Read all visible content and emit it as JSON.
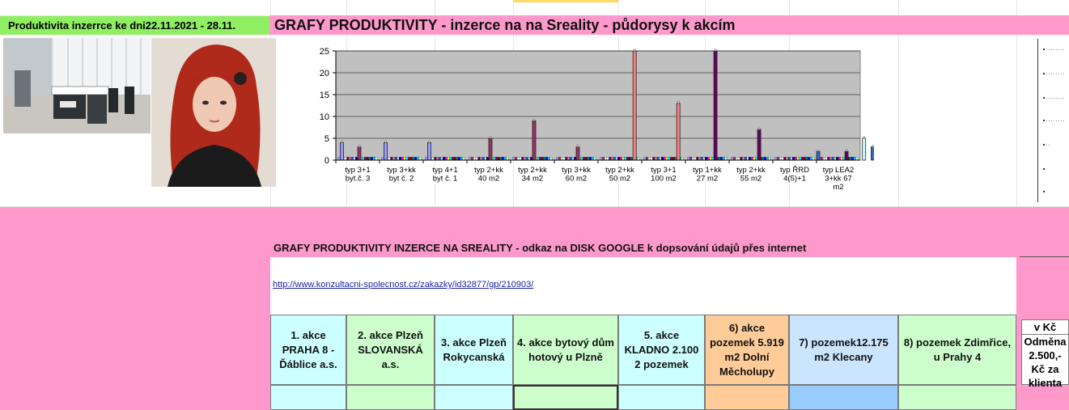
{
  "header": {
    "left_title": "Produktivita inzerrce ke dni22.11.2021 - 28.11.",
    "main_title": "GRAFY PRODUKTIVITY - inzerce na na Sreality  - půdorysy k akcím"
  },
  "section2": {
    "title": "GRAFY  PRODUKTIVITY  INZERCE NA SREALITY - odkaz na DISK GOOGLE k dopsování údajů přes internet",
    "link": "http://www.konzultacni-spolecnost.cz/zakazky/id32877/gp/210903/"
  },
  "table": {
    "columns": [
      {
        "label": "1. akce PRAHA 8 - Ďáblice a.s.",
        "color": "#ccffff"
      },
      {
        "label": "2. akce Plzeň SLOVANSKÁ a.s.",
        "color": "#ccffcc"
      },
      {
        "label": "3. akce Plzeň Rokycanská",
        "color": "#ccffff"
      },
      {
        "label": "4. akce bytový dům hotový u Plzně",
        "color": "#ccffcc"
      },
      {
        "label": "5. akce KLADNO 2.100 2 pozemek",
        "color": "#ccffff"
      },
      {
        "label": "6) akce pozemek 5.919 m2 Dolní Měcholupy",
        "color": "#ffcc99"
      },
      {
        "label": "7) pozemek12.175 m2 Klecany",
        "color": "#cce5ff"
      },
      {
        "label": "8) pozemek Zdimřice, u Prahy 4",
        "color": "#ccffcc"
      }
    ],
    "side_header": "v Kč",
    "side_cell": "Odměna 2.500,- Kč za klienta"
  },
  "chart_data": {
    "type": "bar",
    "title": "",
    "xlabel": "",
    "ylabel": "",
    "ylim": [
      0,
      25
    ],
    "yticks": [
      0,
      5,
      10,
      15,
      20,
      25
    ],
    "grid": true,
    "categories": [
      "typ 3+1 byt.č. 3",
      "typ 3+kk byt č. 2",
      "typ 4+1 byt č. 1",
      "typ 2+kk 40 m2",
      "typ 2+kk 34 m2",
      "typ 3+kk 60 m2",
      "typ 2+kk 50 m2",
      "typ 3+1 100 m2",
      "typ 1+kk 27 m2",
      "typ 2+kk 55 m2",
      "typ ŘRD 4(5)+1",
      "typ LEA2 3+kk 67 m2"
    ],
    "bars": [
      {
        "category": 0,
        "slot": 0,
        "value": 4,
        "color": "#9999ff"
      },
      {
        "category": 0,
        "slot": 1,
        "value": 3,
        "color": "#993366"
      },
      {
        "category": 1,
        "slot": 0,
        "value": 4,
        "color": "#9999ff"
      },
      {
        "category": 2,
        "slot": 0,
        "value": 4,
        "color": "#9999ff"
      },
      {
        "category": 3,
        "slot": 1,
        "value": 5,
        "color": "#993366"
      },
      {
        "category": 4,
        "slot": 1,
        "value": 9,
        "color": "#993366"
      },
      {
        "category": 5,
        "slot": 1,
        "value": 3,
        "color": "#993366"
      },
      {
        "category": 6,
        "slot": 2,
        "value": 25,
        "color": "#ff8080"
      },
      {
        "category": 7,
        "slot": 2,
        "value": 13,
        "color": "#ff8080"
      },
      {
        "category": 8,
        "slot": 3,
        "value": 25,
        "color": "#660066"
      },
      {
        "category": 9,
        "slot": 3,
        "value": 7,
        "color": "#660066"
      },
      {
        "category": 10,
        "slot": 4,
        "value": 2,
        "color": "#3366cc"
      },
      {
        "category": 11,
        "slot": 3,
        "value": 2,
        "color": "#660066"
      },
      {
        "category": 11,
        "slot": 5,
        "value": 5,
        "color": "#ccffff"
      },
      {
        "category": 11,
        "slot": 6,
        "value": 3,
        "color": "#3366cc"
      }
    ],
    "baseline_colors": [
      "#9999ff",
      "#993366",
      "#ffffcc",
      "#ccffff",
      "#660066",
      "#ff8080",
      "#0066cc",
      "#ccccff",
      "#000080",
      "#ff00ff",
      "#ffff00",
      "#00ffff",
      "#800080",
      "#800000",
      "#008080",
      "#0000ff",
      "#00ccff",
      "#ccffcc"
    ]
  }
}
